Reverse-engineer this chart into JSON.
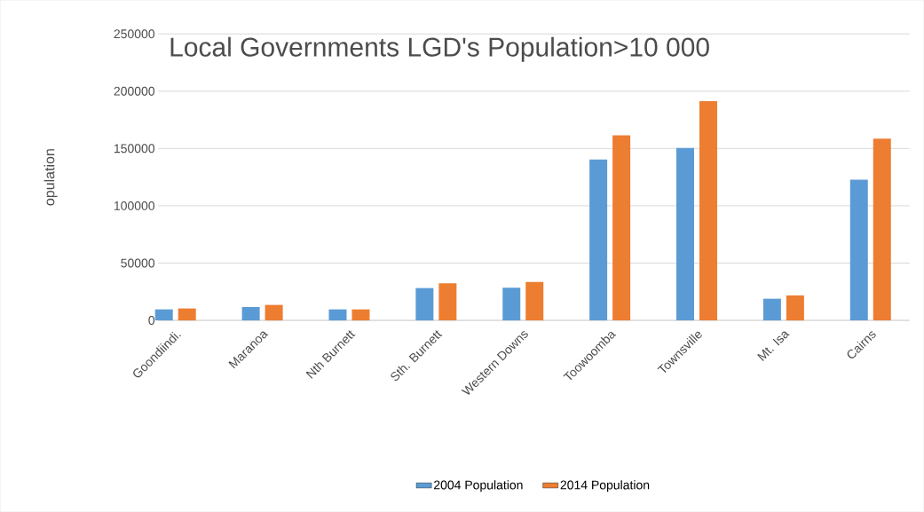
{
  "chart_data": {
    "type": "bar",
    "title": "Local Governments LGD's Population>10 000",
    "ylabel": "opulation",
    "categories": [
      "Goondiindi.",
      "Maranoa",
      "Nth Burnett",
      "Sth. Burnett",
      "Western Downs",
      "Toowoomba",
      "Townsville",
      "Mt. Isa",
      "Cairns"
    ],
    "series": [
      {
        "name": "2004 Population",
        "color": "#5b9bd5",
        "values": [
          9600,
          11700,
          9600,
          28200,
          28500,
          140400,
          150500,
          18900,
          122800
        ]
      },
      {
        "name": "2014 Population",
        "color": "#ed7d31",
        "values": [
          10400,
          13500,
          9600,
          32400,
          33500,
          161400,
          191200,
          21800,
          158500
        ]
      }
    ],
    "ylim": [
      0,
      250000
    ],
    "yticks": [
      0,
      50000,
      100000,
      150000,
      200000,
      250000
    ],
    "grid": "y",
    "legend": "bottom"
  }
}
